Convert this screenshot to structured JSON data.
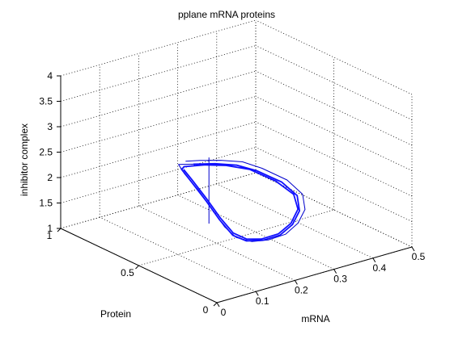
{
  "chart_data": {
    "type": "line",
    "subtype": "3d-trajectory",
    "title": "pplane mRNA proteins",
    "xlabel": "mRNA",
    "ylabel": "Protein",
    "zlabel": "inhibitor complex",
    "xlim": [
      0,
      0.5
    ],
    "ylim": [
      0,
      1
    ],
    "zlim": [
      1,
      4
    ],
    "xticks": [
      "0",
      "0.1",
      "0.2",
      "0.3",
      "0.4",
      "0.5"
    ],
    "yticks": [
      "0",
      "0.5",
      "1"
    ],
    "zticks": [
      "1",
      "1.5",
      "2",
      "2.5",
      "3",
      "3.5",
      "4"
    ],
    "grid": true,
    "box": "back-planes",
    "line_color": "#0000cc",
    "highlight_color": "#1010ff",
    "series": [
      {
        "style": "vertical-segment",
        "points": [
          [
            0.228,
            0.62,
            2.45
          ],
          [
            0.228,
            0.62,
            1.15
          ]
        ]
      },
      {
        "style": "trajectory",
        "points": [
          [
            0.2,
            0.7,
            2.32
          ],
          [
            0.23,
            0.68,
            2.3
          ],
          [
            0.27,
            0.65,
            2.26
          ],
          [
            0.31,
            0.61,
            2.2
          ],
          [
            0.34,
            0.56,
            2.08
          ],
          [
            0.38,
            0.5,
            1.85
          ],
          [
            0.4,
            0.45,
            1.6
          ],
          [
            0.39,
            0.41,
            1.38
          ],
          [
            0.36,
            0.38,
            1.22
          ],
          [
            0.32,
            0.36,
            1.12
          ],
          [
            0.28,
            0.37,
            1.08
          ],
          [
            0.25,
            0.4,
            1.07
          ],
          [
            0.23,
            0.45,
            1.12
          ],
          [
            0.22,
            0.5,
            1.28
          ],
          [
            0.21,
            0.55,
            1.55
          ],
          [
            0.2,
            0.62,
            1.88
          ],
          [
            0.19,
            0.68,
            2.12
          ],
          [
            0.19,
            0.72,
            2.25
          ],
          [
            0.22,
            0.7,
            2.22
          ],
          [
            0.26,
            0.66,
            2.2
          ],
          [
            0.3,
            0.62,
            2.14
          ],
          [
            0.33,
            0.57,
            2.04
          ],
          [
            0.37,
            0.51,
            1.82
          ],
          [
            0.39,
            0.46,
            1.58
          ],
          [
            0.38,
            0.42,
            1.36
          ],
          [
            0.35,
            0.39,
            1.2
          ],
          [
            0.31,
            0.37,
            1.11
          ],
          [
            0.27,
            0.38,
            1.08
          ],
          [
            0.24,
            0.41,
            1.09
          ],
          [
            0.225,
            0.46,
            1.16
          ],
          [
            0.215,
            0.52,
            1.4
          ],
          [
            0.205,
            0.58,
            1.7
          ],
          [
            0.195,
            0.65,
            2.0
          ],
          [
            0.19,
            0.7,
            2.18
          ],
          [
            0.2,
            0.71,
            2.2
          ],
          [
            0.24,
            0.68,
            2.19
          ],
          [
            0.28,
            0.64,
            2.15
          ],
          [
            0.32,
            0.59,
            2.06
          ],
          [
            0.36,
            0.52,
            1.84
          ],
          [
            0.385,
            0.47,
            1.6
          ],
          [
            0.38,
            0.43,
            1.38
          ],
          [
            0.35,
            0.4,
            1.21
          ],
          [
            0.31,
            0.38,
            1.12
          ],
          [
            0.27,
            0.39,
            1.09
          ],
          [
            0.245,
            0.42,
            1.1
          ],
          [
            0.23,
            0.47,
            1.18
          ],
          [
            0.22,
            0.53,
            1.42
          ],
          [
            0.21,
            0.59,
            1.72
          ],
          [
            0.2,
            0.66,
            2.02
          ],
          [
            0.195,
            0.7,
            2.17
          ]
        ]
      }
    ]
  }
}
